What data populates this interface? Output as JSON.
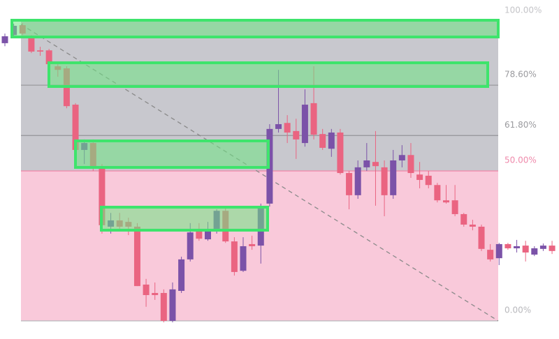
{
  "chart_data": {
    "type": "candlestick",
    "ylim": [
      0,
      107
    ],
    "up_color": "#7b52a8",
    "down_color": "#ea6481",
    "levels": [
      {
        "value": 100,
        "label": "100.00%",
        "color": "#c4c4c8"
      },
      {
        "value": 78.6,
        "label": "78.60%",
        "color": "#9a9a9e"
      },
      {
        "value": 61.8,
        "label": "61.80%",
        "color": "#9a9a9e"
      },
      {
        "value": 50,
        "label": "50.00%",
        "color": "#ef8aab"
      },
      {
        "value": 0,
        "label": "0.00%",
        "color": "#b8b8bc"
      }
    ],
    "zones": [
      {
        "from": 100,
        "to": 50,
        "color": "#c8c8ce"
      },
      {
        "from": 50,
        "to": 0,
        "color": "#f9c9da"
      }
    ],
    "open": [
      92.6,
      95.3,
      98.6,
      94.2,
      90.2,
      90.2,
      84.9,
      84.2,
      72.1,
      57.0,
      59.3,
      51.2,
      31.4,
      33.5,
      33.0,
      31.4,
      12.1,
      9.3,
      9.3,
      0,
      10.0,
      20.5,
      30.2,
      27.2,
      30.2,
      36.7,
      26.5,
      16.7,
      25.6,
      25.1,
      39.1,
      64.0,
      66.0,
      63.3,
      59.3,
      72.6,
      62.3,
      57.4,
      62.8,
      49.3,
      41.9,
      51.2,
      53.0,
      51.2,
      41.9,
      53.5,
      55.3,
      48.8,
      48.4,
      45.3,
      40.2,
      40.2,
      35.6,
      32.1,
      31.4,
      23.7,
      20.9,
      25.6,
      24.2,
      25.1,
      22.1,
      24.0,
      25.1
    ],
    "high": [
      95.8,
      99.1,
      99.3,
      95.3,
      91.4,
      90.7,
      86.0,
      84.9,
      72.6,
      60.5,
      60.5,
      52.3,
      36.0,
      36.0,
      34.4,
      32.6,
      14.0,
      12.8,
      10.5,
      12.8,
      21.4,
      32.6,
      32.6,
      33.0,
      37.2,
      37.7,
      27.9,
      27.9,
      28.4,
      39.1,
      65.6,
      83.7,
      68.6,
      67.4,
      77.2,
      84.9,
      64.0,
      64.0,
      64.0,
      50.0,
      53.5,
      59.3,
      63.3,
      53.5,
      57.0,
      58.6,
      59.3,
      53.0,
      50.0,
      46.0,
      45.3,
      45.3,
      36.0,
      33.7,
      32.1,
      25.6,
      26.0,
      26.0,
      27.0,
      26.7,
      24.9,
      25.8,
      26.7
    ],
    "low": [
      91.6,
      94.9,
      95.3,
      89.3,
      88.4,
      85.1,
      81.4,
      70.9,
      56.3,
      52.3,
      50.0,
      29.1,
      29.1,
      30.2,
      28.6,
      11.6,
      4.7,
      7.0,
      -0.5,
      -0.5,
      9.3,
      19.8,
      26.7,
      26.7,
      29.1,
      26.0,
      15.1,
      16.3,
      23.7,
      19.1,
      38.1,
      62.8,
      59.3,
      54.0,
      58.1,
      60.5,
      57.0,
      54.7,
      48.8,
      37.2,
      40.7,
      50.0,
      38.4,
      34.9,
      40.7,
      51.2,
      47.7,
      44.2,
      44.2,
      39.5,
      39.1,
      34.9,
      31.4,
      30.2,
      23.3,
      19.8,
      18.6,
      23.7,
      22.8,
      19.8,
      21.6,
      23.3,
      22.3
    ],
    "close": [
      94.9,
      98.4,
      95.8,
      89.8,
      89.8,
      85.6,
      83.7,
      71.6,
      57.0,
      59.3,
      51.2,
      31.9,
      33.5,
      31.4,
      31.4,
      11.6,
      8.6,
      8.6,
      0,
      10.5,
      20.5,
      29.5,
      27.4,
      30.2,
      36.7,
      26.5,
      16.3,
      24.9,
      24.9,
      37.9,
      64.0,
      65.6,
      62.8,
      60.5,
      72.1,
      62.1,
      57.7,
      62.8,
      49.3,
      41.9,
      51.2,
      53.5,
      51.6,
      41.9,
      53.5,
      55.3,
      49.3,
      47.0,
      45.3,
      40.2,
      39.5,
      35.6,
      32.1,
      31.4,
      24.0,
      20.5,
      25.6,
      24.2,
      24.9,
      22.8,
      24.2,
      25.1,
      23.3
    ]
  }
}
